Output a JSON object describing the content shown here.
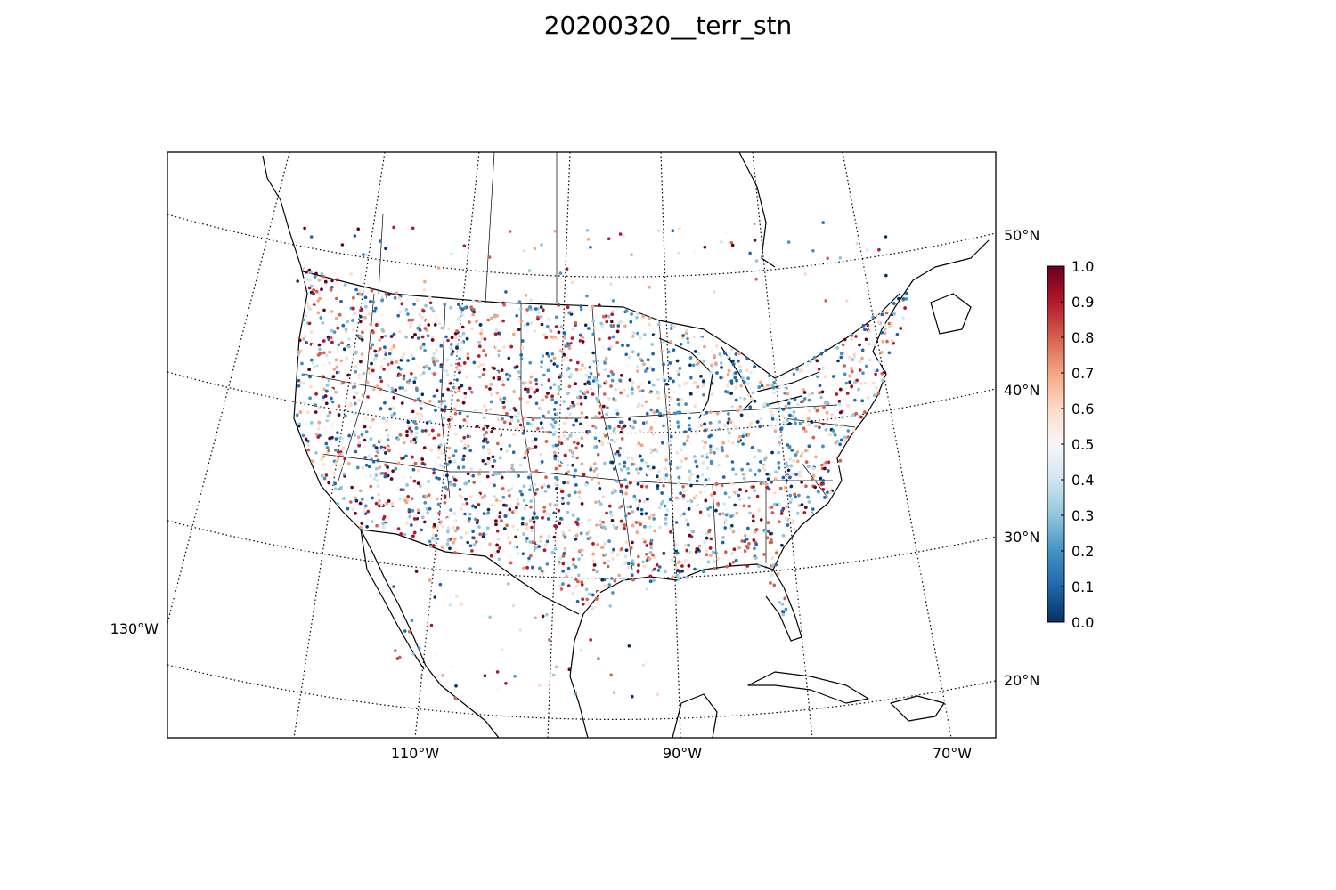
{
  "title": "20200320__terr_stn",
  "map": {
    "projection": "lambert-conformal",
    "meridian_labels": [
      "130°W",
      "110°W",
      "90°W",
      "70°W"
    ],
    "parallel_labels": [
      "50°N",
      "40°N",
      "30°N",
      "20°N"
    ],
    "points_colormap": "RdBu_r",
    "colorbar": {
      "min": 0.0,
      "max": 1.0,
      "tick_labels": [
        "0.0",
        "0.1",
        "0.2",
        "0.3",
        "0.4",
        "0.5",
        "0.6",
        "0.7",
        "0.8",
        "0.9",
        "1.0"
      ],
      "colors": [
        "#053061",
        "#2166ac",
        "#4393c3",
        "#92c5de",
        "#d1e5f0",
        "#f7f7f7",
        "#fddbc7",
        "#f4a582",
        "#d6604d",
        "#b2182b",
        "#67001f"
      ]
    }
  }
}
